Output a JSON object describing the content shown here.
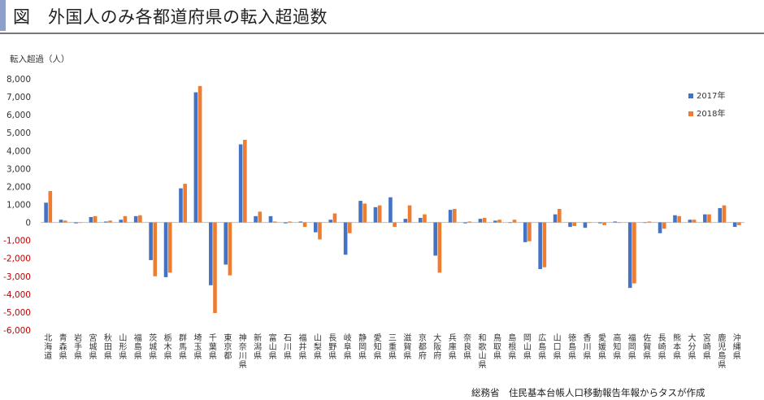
{
  "header": {
    "title": "図　外国人のみ各都道府県の転入超過数"
  },
  "source": "総務省　住民基本台帳人口移動報告年報からタスが作成",
  "colors": {
    "2017": "#4472c4",
    "2018": "#ed7d31",
    "negative_tick": "#c00000"
  },
  "chart_data": {
    "type": "bar",
    "ylabel": "転入超過（人）",
    "ylim": [
      -6000,
      8000
    ],
    "ytick_step": 1000,
    "yticks": [
      "8,000",
      "7,000",
      "6,000",
      "5,000",
      "4,000",
      "3,000",
      "2,000",
      "1,000",
      "0",
      "-1,000",
      "-2,000",
      "-3,000",
      "-4,000",
      "-5,000",
      "-6,000"
    ],
    "grid": false,
    "legend_position": "top-right",
    "categories": [
      "北海道",
      "青森県",
      "岩手県",
      "宮城県",
      "秋田県",
      "山形県",
      "福島県",
      "茨城県",
      "栃木県",
      "群馬県",
      "埼玉県",
      "千葉県",
      "東京都",
      "神奈川県",
      "新潟県",
      "富山県",
      "石川県",
      "福井県",
      "山梨県",
      "長野県",
      "岐阜県",
      "静岡県",
      "愛知県",
      "三重県",
      "滋賀県",
      "京都府",
      "大阪府",
      "兵庫県",
      "奈良県",
      "和歌山県",
      "鳥取県",
      "島根県",
      "岡山県",
      "広島県",
      "山口県",
      "徳島県",
      "香川県",
      "愛媛県",
      "高知県",
      "福岡県",
      "佐賀県",
      "長崎県",
      "熊本県",
      "大分県",
      "宮崎県",
      "鹿児島県",
      "沖縄県"
    ],
    "series": [
      {
        "name": "2017年",
        "values": [
          1100,
          150,
          -50,
          300,
          50,
          150,
          350,
          -2100,
          -3050,
          1900,
          7250,
          -3500,
          -2350,
          4350,
          350,
          350,
          -50,
          50,
          -550,
          150,
          -1800,
          1200,
          850,
          1400,
          200,
          250,
          -1850,
          700,
          -50,
          200,
          100,
          0,
          -1100,
          -2600,
          450,
          -250,
          -300,
          -50,
          50,
          -3650,
          0,
          -600,
          400,
          150,
          450,
          800,
          -250
        ]
      },
      {
        "name": "2018年",
        "values": [
          1750,
          100,
          0,
          350,
          100,
          350,
          400,
          -3000,
          -2800,
          2150,
          7600,
          -5050,
          -2950,
          4600,
          600,
          50,
          50,
          -250,
          -950,
          500,
          -600,
          1050,
          950,
          -250,
          950,
          450,
          -2800,
          750,
          50,
          250,
          150,
          150,
          -1050,
          -2500,
          750,
          -200,
          0,
          -150,
          0,
          -3400,
          50,
          -350,
          350,
          150,
          450,
          950,
          -150
        ]
      }
    ]
  }
}
